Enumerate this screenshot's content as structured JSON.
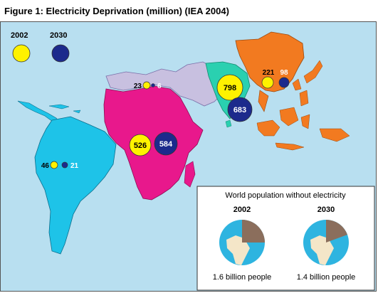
{
  "title": "Figure 1:  Electricity Deprivation (million) (IEA 2004)",
  "legend": {
    "year1": "2002",
    "year2": "2030"
  },
  "colors": {
    "ocean": "#b8dff0",
    "year_2002": "#fff200",
    "year_2030": "#1c2a8c",
    "latin_america": "#1ec3e8",
    "africa": "#e8188c",
    "middle_east": "#c8c0e0",
    "south_asia": "#2ad0b0",
    "east_asia": "#f27a20"
  },
  "regions": {
    "latin_america": {
      "v2002": "46",
      "v2030": "21"
    },
    "middle_east": {
      "v2002": "23",
      "v2030": "6"
    },
    "africa": {
      "v2002": "526",
      "v2030": "584"
    },
    "south_asia": {
      "v2002": "798",
      "v2030": "683"
    },
    "east_asia": {
      "v2002": "221",
      "v2030": "98"
    }
  },
  "inset": {
    "title": "World population without electricity",
    "year1": "2002",
    "year2": "2030",
    "caption1": "1.6 billion people",
    "caption2": "1.4 billion people"
  }
}
